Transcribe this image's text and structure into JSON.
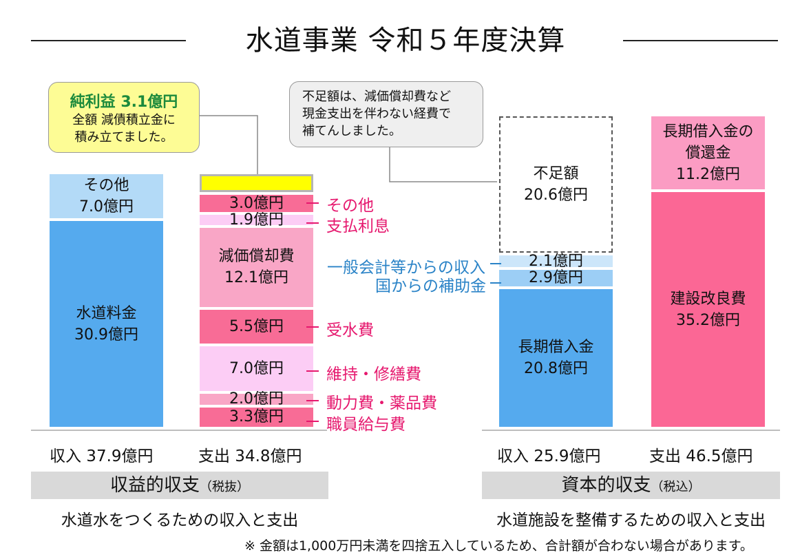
{
  "title": "水道事業 令和５年度決算",
  "callout_profit": {
    "title": "純利益 3.1億円",
    "body": "全額 減債積立金に\n積み立てました。"
  },
  "callout_shortfall": {
    "body": "不足額は、減価償却費など\n現金支出を伴わない経費で\n補てんしました。"
  },
  "chart_data": [
    {
      "type": "stacked-bar",
      "title": "収益的収支（税抜）",
      "unit": "億円",
      "bars": [
        {
          "name": "収入",
          "total_label": "収入 37.9億円",
          "segments": [
            {
              "label": "水道料金",
              "value": 30.9,
              "text": "水道料金\n30.9億円",
              "color": "#55aaee"
            },
            {
              "label": "その他",
              "value": 7.0,
              "text": "その他\n7.0億円",
              "color": "#b3daf7"
            }
          ]
        },
        {
          "name": "支出",
          "total_label": "支出 34.8億円",
          "segments": [
            {
              "label": "職員給与費",
              "value": 3.3,
              "text": "3.3億円",
              "color": "#f86c96"
            },
            {
              "label": "動力費・薬品費",
              "value": 2.0,
              "text": "2.0億円",
              "color": "#f9a6c6"
            },
            {
              "label": "維持・修繕費",
              "value": 7.0,
              "text": "7.0億円",
              "color": "#fccdf5"
            },
            {
              "label": "受水費",
              "value": 5.5,
              "text": "5.5億円",
              "color": "#f86c96"
            },
            {
              "label": "減価償却費",
              "value": 12.1,
              "text": "減価償却費\n12.1億円",
              "color": "#f9a6c6"
            },
            {
              "label": "支払利息",
              "value": 1.9,
              "text": "1.9億円",
              "color": "#fccdf5"
            },
            {
              "label": "その他",
              "value": 3.0,
              "text": "3.0億円",
              "color": "#f86c96"
            },
            {
              "label": "純利益",
              "value": 3.1,
              "text": "",
              "color": "#ffff00"
            }
          ]
        }
      ]
    },
    {
      "type": "stacked-bar",
      "title": "資本的収支（税込）",
      "unit": "億円",
      "bars": [
        {
          "name": "収入",
          "total_label": "収入 25.9億円",
          "segments": [
            {
              "label": "長期借入金",
              "value": 20.8,
              "text": "長期借入金\n20.8億円",
              "color": "#55aaee"
            },
            {
              "label": "国からの補助金",
              "value": 2.9,
              "text": "2.9億円",
              "color": "#9ccef5"
            },
            {
              "label": "一般会計等からの収入",
              "value": 2.1,
              "text": "2.1億円",
              "color": "#cce6fa"
            },
            {
              "label": "不足額",
              "value": 20.6,
              "text": "不足額\n20.6億円",
              "color": "#ffffff"
            }
          ]
        },
        {
          "name": "支出",
          "total_label": "支出 46.5億円",
          "segments": [
            {
              "label": "建設改良費",
              "value": 35.2,
              "text": "建設改良費\n35.2億円",
              "color": "#fb6795"
            },
            {
              "label": "長期借入金の償還金",
              "value": 11.2,
              "text": "長期借入金の\n償還金\n11.2億円",
              "color": "#fb9cc3"
            }
          ]
        }
      ]
    }
  ],
  "side_labels": {
    "exp_other": "その他",
    "exp_interest": "支払利息",
    "exp_water_purchase": "受水費",
    "exp_maintenance": "維持・修繕費",
    "exp_power": "動力費・薬品費",
    "exp_salary": "職員給与費",
    "cap_general": "一般会計等からの収入",
    "cap_national": "国からの補助金"
  },
  "sections": {
    "left": {
      "title": "収益的収支",
      "tax": "（税抜）",
      "desc": "水道水をつくるための収入と支出"
    },
    "right": {
      "title": "資本的収支",
      "tax": "（税込）",
      "desc": "水道施設を整備するための収入と支出"
    }
  },
  "note": "※ 金額は1,000万円未満を四捨五入しているため、合計額が合わない場合があります。"
}
